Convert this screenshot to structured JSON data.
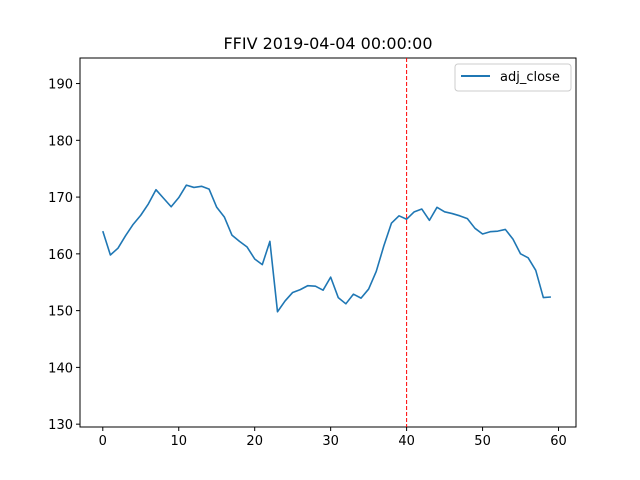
{
  "chart_data": {
    "type": "line",
    "title": "FFIV 2019-04-04 00:00:00",
    "xlabel": "",
    "ylabel": "",
    "xlim": [
      -3,
      62.3
    ],
    "ylim": [
      129.5,
      194.5
    ],
    "xticks": [
      0,
      10,
      20,
      30,
      40,
      50,
      60
    ],
    "yticks": [
      130,
      140,
      150,
      160,
      170,
      180,
      190
    ],
    "grid": false,
    "legend": {
      "position": "top-right"
    },
    "colors": {
      "series": "#1f77b4",
      "marker_line": "#ff0000"
    },
    "vline": {
      "x": 40,
      "style": "dashed"
    },
    "series": [
      {
        "name": "adj_close",
        "x": [
          0,
          1,
          2,
          3,
          4,
          5,
          6,
          7,
          8,
          9,
          10,
          11,
          12,
          13,
          14,
          15,
          16,
          17,
          18,
          19,
          20,
          21,
          22,
          23,
          24,
          25,
          26,
          27,
          28,
          29,
          30,
          31,
          32,
          33,
          34,
          35,
          36,
          37,
          38,
          39,
          40,
          41,
          42,
          43,
          44,
          45,
          46,
          47,
          48,
          49,
          50,
          51,
          52,
          53,
          54,
          55,
          56,
          57,
          58,
          59
        ],
        "values": [
          164.0,
          159.8,
          161.0,
          163.2,
          165.2,
          166.8,
          168.8,
          171.3,
          169.8,
          168.3,
          169.9,
          172.1,
          171.7,
          171.9,
          171.4,
          168.2,
          166.5,
          163.3,
          162.2,
          161.2,
          159.1,
          158.1,
          162.2,
          149.8,
          151.7,
          153.2,
          153.7,
          154.4,
          154.3,
          153.6,
          155.9,
          152.3,
          151.2,
          152.9,
          152.2,
          153.8,
          156.9,
          161.4,
          165.4,
          166.7,
          166.1,
          167.4,
          167.9,
          165.9,
          168.2,
          167.4,
          167.1,
          166.7,
          166.2,
          164.5,
          163.5,
          163.9,
          164.0,
          164.3,
          162.6,
          160.0,
          159.3,
          157.1,
          152.3,
          152.4
        ]
      }
    ]
  }
}
